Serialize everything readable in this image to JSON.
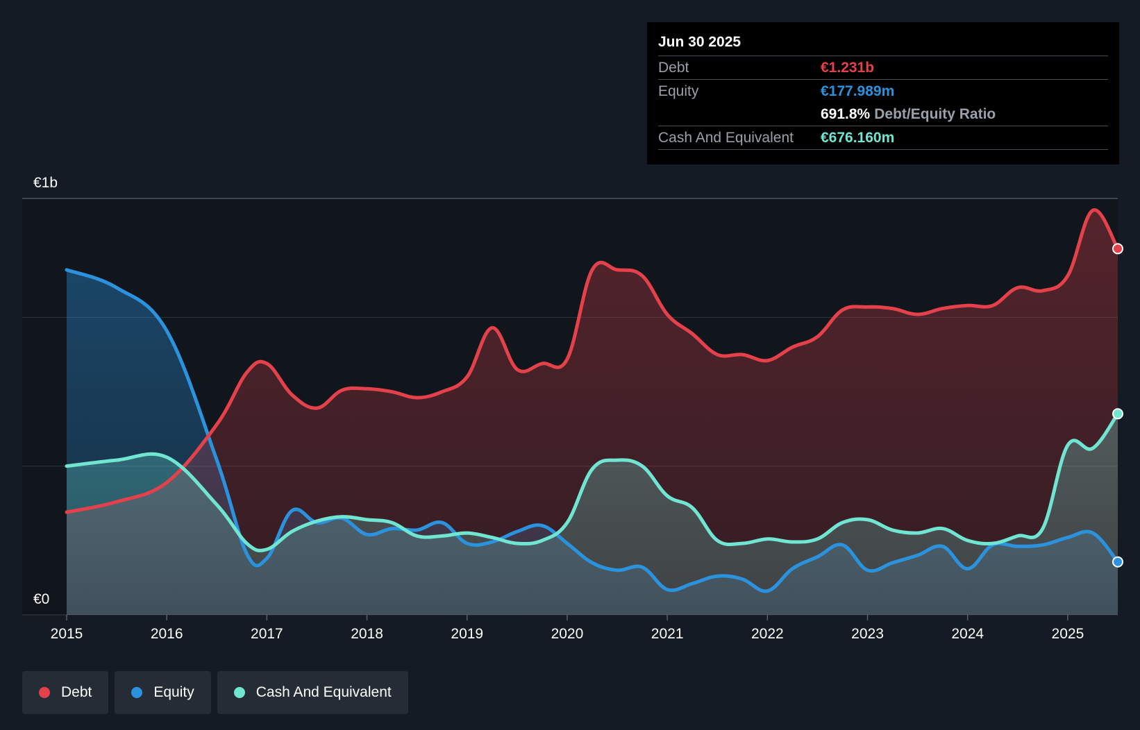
{
  "colors": {
    "debt": "#e5414a",
    "equity": "#2b93de",
    "cash": "#6fe5d2",
    "background": "#151b24"
  },
  "tooltip": {
    "date": "Jun 30 2025",
    "debt_label": "Debt",
    "debt_value": "€1.231b",
    "equity_label": "Equity",
    "equity_value": "€177.989m",
    "ratio_value": "691.8%",
    "ratio_label": "Debt/Equity Ratio",
    "cash_label": "Cash And Equivalent",
    "cash_value": "€676.160m"
  },
  "legend": {
    "debt": "Debt",
    "equity": "Equity",
    "cash": "Cash And Equivalent"
  },
  "chart_data": {
    "type": "area",
    "title": "",
    "xlabel": "",
    "ylabel": "",
    "ylim": [
      0,
      1400
    ],
    "y_tick_labels": [
      {
        "value": 0,
        "label": "€0"
      },
      {
        "value": 1400,
        "label": "€1b"
      }
    ],
    "gridlines": [
      0,
      500,
      1000,
      1400
    ],
    "x_ticks": [
      2015,
      2016,
      2017,
      2018,
      2019,
      2020,
      2021,
      2022,
      2023,
      2024,
      2025
    ],
    "xlim": [
      2014.55,
      2025.5
    ],
    "series": [
      {
        "name": "Debt",
        "points": [
          [
            2015.0,
            345
          ],
          [
            2015.5,
            380
          ],
          [
            2016.0,
            445
          ],
          [
            2016.5,
            640
          ],
          [
            2016.8,
            815
          ],
          [
            2017.0,
            845
          ],
          [
            2017.25,
            740
          ],
          [
            2017.5,
            695
          ],
          [
            2017.75,
            755
          ],
          [
            2018.0,
            760
          ],
          [
            2018.25,
            750
          ],
          [
            2018.5,
            730
          ],
          [
            2018.75,
            750
          ],
          [
            2019.0,
            800
          ],
          [
            2019.25,
            965
          ],
          [
            2019.5,
            825
          ],
          [
            2019.75,
            845
          ],
          [
            2020.0,
            860
          ],
          [
            2020.25,
            1160
          ],
          [
            2020.5,
            1160
          ],
          [
            2020.75,
            1140
          ],
          [
            2021.0,
            1010
          ],
          [
            2021.25,
            945
          ],
          [
            2021.5,
            875
          ],
          [
            2021.75,
            875
          ],
          [
            2022.0,
            855
          ],
          [
            2022.25,
            900
          ],
          [
            2022.5,
            935
          ],
          [
            2022.75,
            1025
          ],
          [
            2023.0,
            1035
          ],
          [
            2023.25,
            1030
          ],
          [
            2023.5,
            1010
          ],
          [
            2023.75,
            1030
          ],
          [
            2024.0,
            1040
          ],
          [
            2024.25,
            1040
          ],
          [
            2024.5,
            1100
          ],
          [
            2024.75,
            1090
          ],
          [
            2025.0,
            1140
          ],
          [
            2025.25,
            1360
          ],
          [
            2025.5,
            1231
          ]
        ]
      },
      {
        "name": "Equity",
        "points": [
          [
            2015.0,
            1160
          ],
          [
            2015.5,
            1100
          ],
          [
            2016.0,
            955
          ],
          [
            2016.5,
            520
          ],
          [
            2016.8,
            205
          ],
          [
            2017.0,
            190
          ],
          [
            2017.25,
            350
          ],
          [
            2017.5,
            310
          ],
          [
            2017.75,
            325
          ],
          [
            2018.0,
            270
          ],
          [
            2018.25,
            290
          ],
          [
            2018.5,
            285
          ],
          [
            2018.75,
            310
          ],
          [
            2019.0,
            240
          ],
          [
            2019.25,
            245
          ],
          [
            2019.5,
            280
          ],
          [
            2019.75,
            300
          ],
          [
            2020.0,
            240
          ],
          [
            2020.25,
            175
          ],
          [
            2020.5,
            150
          ],
          [
            2020.75,
            160
          ],
          [
            2021.0,
            85
          ],
          [
            2021.25,
            105
          ],
          [
            2021.5,
            130
          ],
          [
            2021.75,
            120
          ],
          [
            2022.0,
            80
          ],
          [
            2022.25,
            155
          ],
          [
            2022.5,
            195
          ],
          [
            2022.75,
            235
          ],
          [
            2023.0,
            150
          ],
          [
            2023.25,
            175
          ],
          [
            2023.5,
            200
          ],
          [
            2023.75,
            230
          ],
          [
            2024.0,
            155
          ],
          [
            2024.25,
            235
          ],
          [
            2024.5,
            230
          ],
          [
            2024.75,
            235
          ],
          [
            2025.0,
            260
          ],
          [
            2025.25,
            275
          ],
          [
            2025.5,
            178
          ]
        ]
      },
      {
        "name": "Cash And Equivalent",
        "points": [
          [
            2015.0,
            500
          ],
          [
            2015.5,
            520
          ],
          [
            2016.0,
            530
          ],
          [
            2016.5,
            370
          ],
          [
            2016.8,
            240
          ],
          [
            2017.0,
            220
          ],
          [
            2017.25,
            280
          ],
          [
            2017.5,
            315
          ],
          [
            2017.75,
            330
          ],
          [
            2018.0,
            320
          ],
          [
            2018.25,
            310
          ],
          [
            2018.5,
            265
          ],
          [
            2018.75,
            265
          ],
          [
            2019.0,
            275
          ],
          [
            2019.25,
            260
          ],
          [
            2019.5,
            240
          ],
          [
            2019.75,
            250
          ],
          [
            2020.0,
            310
          ],
          [
            2020.25,
            490
          ],
          [
            2020.5,
            520
          ],
          [
            2020.75,
            500
          ],
          [
            2021.0,
            400
          ],
          [
            2021.25,
            360
          ],
          [
            2021.5,
            250
          ],
          [
            2021.75,
            240
          ],
          [
            2022.0,
            255
          ],
          [
            2022.25,
            245
          ],
          [
            2022.5,
            255
          ],
          [
            2022.75,
            310
          ],
          [
            2023.0,
            320
          ],
          [
            2023.25,
            285
          ],
          [
            2023.5,
            275
          ],
          [
            2023.75,
            290
          ],
          [
            2024.0,
            250
          ],
          [
            2024.25,
            240
          ],
          [
            2024.5,
            265
          ],
          [
            2024.75,
            290
          ],
          [
            2025.0,
            570
          ],
          [
            2025.25,
            560
          ],
          [
            2025.5,
            676
          ]
        ]
      }
    ]
  }
}
